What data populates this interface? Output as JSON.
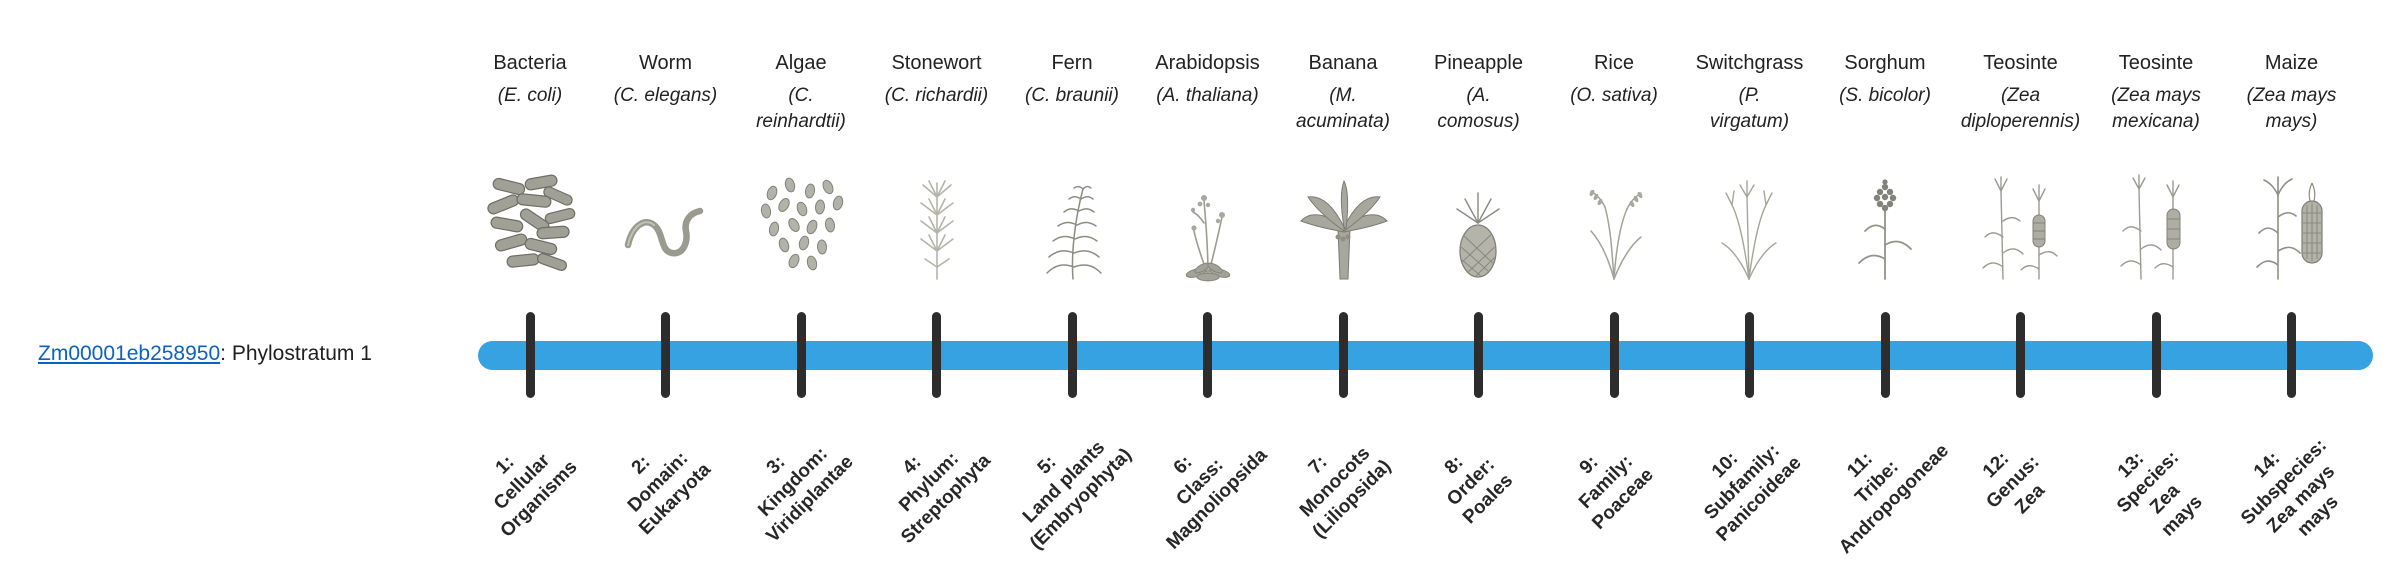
{
  "gene": {
    "id": "Zm00001eb258950",
    "stratum_label": ": Phylostratum 1"
  },
  "colors": {
    "bar": "#36a2e2",
    "tick": "#2d2d2d",
    "link": "#0a63c2"
  },
  "strata": [
    {
      "organism": "Bacteria",
      "scientific": "(E. coli)",
      "icon": "bacteria-icon",
      "label": "1:\nCellular\nOrganisms"
    },
    {
      "organism": "Worm",
      "scientific": "(C. elegans)",
      "icon": "worm-icon",
      "label": "2:\nDomain:\nEukaryota"
    },
    {
      "organism": "Algae",
      "scientific": "(C.\nreinhardtii)",
      "icon": "algae-icon",
      "label": "3:\nKingdom:\nViridiplantae"
    },
    {
      "organism": "Stonewort",
      "scientific": "(C. richardii)",
      "icon": "stonewort-icon",
      "label": "4:\nPhylum:\nStreptophyta"
    },
    {
      "organism": "Fern",
      "scientific": "(C. braunii)",
      "icon": "fern-icon",
      "label": "5:\nLand plants\n(Embryophyta)"
    },
    {
      "organism": "Arabidopsis",
      "scientific": "(A. thaliana)",
      "icon": "arabidopsis-icon",
      "label": "6:\nClass:\nMagnoliopsida"
    },
    {
      "organism": "Banana",
      "scientific": "(M.\nacuminata)",
      "icon": "banana-icon",
      "label": "7:\nMonocots\n(Liliopsida)"
    },
    {
      "organism": "Pineapple",
      "scientific": "(A.\ncomosus)",
      "icon": "pineapple-icon",
      "label": "8:\nOrder:\nPoales"
    },
    {
      "organism": "Rice",
      "scientific": "(O. sativa)",
      "icon": "rice-icon",
      "label": "9:\nFamily:\nPoaceae"
    },
    {
      "organism": "Switchgrass",
      "scientific": "(P.\nvirgatum)",
      "icon": "switchgrass-icon",
      "label": "10:\nSubfamily:\nPanicoideae"
    },
    {
      "organism": "Sorghum",
      "scientific": "(S. bicolor)",
      "icon": "sorghum-icon",
      "label": "11:\nTribe:\nAndropogoneae"
    },
    {
      "organism": "Teosinte",
      "scientific": "(Zea\ndiploperennis)",
      "icon": "teosinte-diploperennis-icon",
      "label": "12:\nGenus:\nZea"
    },
    {
      "organism": "Teosinte",
      "scientific": "(Zea mays\nmexicana)",
      "icon": "teosinte-mexicana-icon",
      "label": "13:\nSpecies:\nZea\nmays"
    },
    {
      "organism": "Maize",
      "scientific": "(Zea mays\nmays)",
      "icon": "maize-icon",
      "label": "14:\nSubspecies:\nZea mays\nmays"
    }
  ]
}
